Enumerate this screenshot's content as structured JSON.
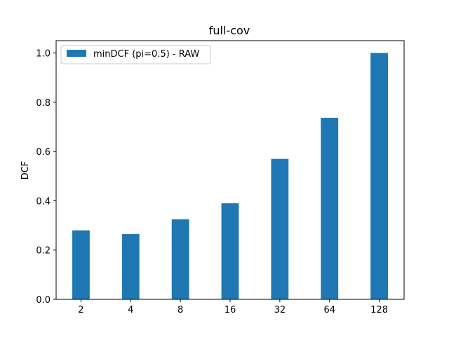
{
  "chart_data": {
    "type": "bar",
    "title": "full-cov",
    "xlabel": "",
    "ylabel": "DCF",
    "categories": [
      "2",
      "4",
      "8",
      "16",
      "32",
      "64",
      "128"
    ],
    "series": [
      {
        "name": "minDCF (pi=0.5) - RAW",
        "values": [
          0.28,
          0.265,
          0.325,
          0.39,
          0.57,
          0.737,
          1.0
        ],
        "color": "#1f77b4"
      }
    ],
    "ylim": [
      0,
      1.05
    ],
    "yticks": [
      0.0,
      0.2,
      0.4,
      0.6,
      0.8,
      1.0
    ],
    "ytick_labels": [
      "0.0",
      "0.2",
      "0.4",
      "0.6",
      "0.8",
      "1.0"
    ],
    "grid": false,
    "legend_position": "top-left"
  }
}
